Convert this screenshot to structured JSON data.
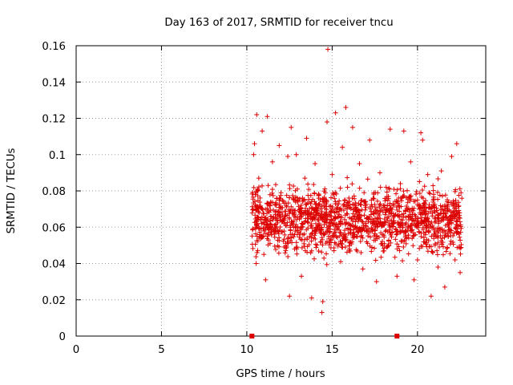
{
  "chart_data": {
    "type": "scatter",
    "title": "Day 163 of 2017, SRMTID for receiver tncu",
    "xlabel": "GPS time / hours",
    "ylabel": "SRMTID / TECUs",
    "xlim": [
      0,
      24
    ],
    "ylim": [
      0,
      0.16
    ],
    "grid": true,
    "x_ticks": [
      0,
      5,
      10,
      15,
      20
    ],
    "x_tick_labels": [
      "0",
      "5",
      "10",
      "15",
      "20"
    ],
    "y_ticks": [
      0,
      0.02,
      0.04,
      0.06,
      0.08,
      0.1,
      0.12,
      0.14,
      0.16
    ],
    "y_tick_labels": [
      "0",
      "0.02",
      "0.04",
      "0.06",
      "0.08",
      "0.1",
      "0.12",
      "0.14",
      "0.16"
    ],
    "marker": "+",
    "color": "#dd0000",
    "data_range_hours": [
      10.3,
      22.6
    ],
    "points": [
      [
        10.4,
        0.1
      ],
      [
        10.45,
        0.106
      ],
      [
        10.5,
        0.078
      ],
      [
        10.55,
        0.04
      ],
      [
        10.58,
        0.122
      ],
      [
        10.6,
        0.062
      ],
      [
        10.7,
        0.087
      ],
      [
        10.8,
        0.071
      ],
      [
        10.9,
        0.113
      ],
      [
        11.0,
        0.045
      ],
      [
        11.1,
        0.031
      ],
      [
        11.2,
        0.121
      ],
      [
        11.25,
        0.083
      ],
      [
        11.4,
        0.066
      ],
      [
        11.5,
        0.096
      ],
      [
        11.7,
        0.058
      ],
      [
        11.9,
        0.105
      ],
      [
        12.0,
        0.079
      ],
      [
        12.2,
        0.062
      ],
      [
        12.4,
        0.099
      ],
      [
        12.5,
        0.022
      ],
      [
        12.6,
        0.115
      ],
      [
        12.8,
        0.048
      ],
      [
        12.9,
        0.1
      ],
      [
        13.0,
        0.075
      ],
      [
        13.2,
        0.033
      ],
      [
        13.4,
        0.087
      ],
      [
        13.5,
        0.109
      ],
      [
        13.6,
        0.068
      ],
      [
        13.8,
        0.021
      ],
      [
        13.9,
        0.054
      ],
      [
        14.0,
        0.095
      ],
      [
        14.2,
        0.072
      ],
      [
        14.4,
        0.013
      ],
      [
        14.45,
        0.019
      ],
      [
        14.6,
        0.079
      ],
      [
        14.7,
        0.118
      ],
      [
        14.75,
        0.158
      ],
      [
        14.8,
        0.055
      ],
      [
        15.0,
        0.089
      ],
      [
        15.2,
        0.123
      ],
      [
        15.4,
        0.066
      ],
      [
        15.5,
        0.041
      ],
      [
        15.6,
        0.104
      ],
      [
        15.8,
        0.126
      ],
      [
        15.9,
        0.082
      ],
      [
        16.0,
        0.047
      ],
      [
        16.2,
        0.115
      ],
      [
        16.4,
        0.071
      ],
      [
        16.6,
        0.095
      ],
      [
        16.8,
        0.037
      ],
      [
        17.0,
        0.058
      ],
      [
        17.2,
        0.108
      ],
      [
        17.4,
        0.076
      ],
      [
        17.6,
        0.03
      ],
      [
        17.8,
        0.09
      ],
      [
        18.0,
        0.061
      ],
      [
        18.2,
        0.049
      ],
      [
        18.4,
        0.114
      ],
      [
        18.6,
        0.072
      ],
      [
        18.8,
        0.033
      ],
      [
        19.0,
        0.084
      ],
      [
        19.2,
        0.113
      ],
      [
        19.4,
        0.058
      ],
      [
        19.6,
        0.096
      ],
      [
        19.8,
        0.031
      ],
      [
        20.0,
        0.075
      ],
      [
        20.2,
        0.112
      ],
      [
        20.3,
        0.108
      ],
      [
        20.4,
        0.063
      ],
      [
        20.6,
        0.089
      ],
      [
        20.8,
        0.022
      ],
      [
        20.9,
        0.046
      ],
      [
        21.0,
        0.071
      ],
      [
        21.2,
        0.038
      ],
      [
        21.4,
        0.091
      ],
      [
        21.6,
        0.027
      ],
      [
        21.8,
        0.055
      ],
      [
        22.0,
        0.099
      ],
      [
        22.2,
        0.042
      ],
      [
        22.3,
        0.106
      ],
      [
        22.4,
        0.068
      ],
      [
        22.5,
        0.035
      ],
      [
        22.55,
        0.079
      ]
    ],
    "zero_markers": [
      10.3,
      18.8
    ]
  }
}
